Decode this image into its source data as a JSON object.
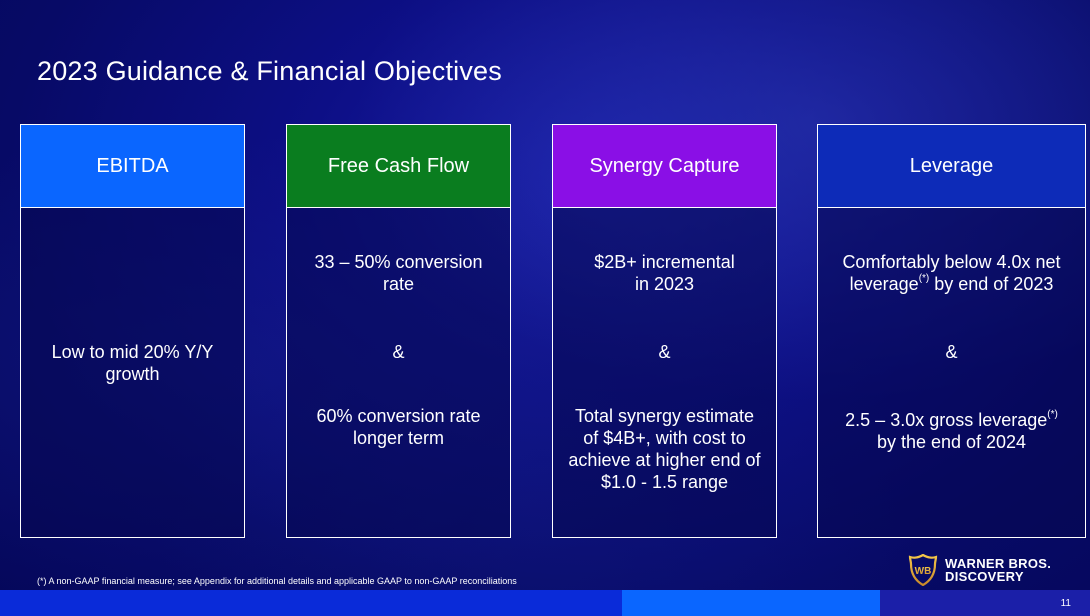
{
  "slide": {
    "title": "2023 Guidance & Financial Objectives",
    "page_number": "11",
    "footnote": "(*) A non-GAAP financial measure; see Appendix for additional details and applicable GAAP to non-GAAP reconciliations"
  },
  "logo": {
    "line1": "WARNER BROS.",
    "line2": "DISCOVERY",
    "shield_text": "WB"
  },
  "cards": {
    "ebitda": {
      "header": "EBITDA",
      "header_color": "#0a66ff",
      "line1": "Low to mid 20% Y/Y",
      "line2": "growth"
    },
    "fcf": {
      "header": "Free Cash Flow",
      "header_color": "#0a7d1f",
      "p1_line1": "33 – 50% conversion",
      "p1_line2": "rate",
      "amp": "&",
      "p2_line1": "60% conversion rate",
      "p2_line2": "longer term"
    },
    "synergy": {
      "header": "Synergy Capture",
      "header_color": "#8a0fe6",
      "p1_line1": "$2B+ incremental",
      "p1_line2": "in 2023",
      "amp": "&",
      "p2_line1": "Total synergy estimate",
      "p2_line2": "of $4B+, with cost to",
      "p2_line3": "achieve at higher end of",
      "p2_line4": "$1.0 - 1.5 range"
    },
    "leverage": {
      "header": "Leverage",
      "header_color": "#0d2bb8",
      "p1_line1": "Comfortably below 4.0x net",
      "p1_line2a": "leverage",
      "p1_sup": "(*)",
      "p1_line2b": " by end of 2023",
      "amp": "&",
      "p2_line1a": "2.5 – 3.0x gross leverage",
      "p2_sup": "(*)",
      "p2_line2": "by the end of 2024"
    }
  }
}
